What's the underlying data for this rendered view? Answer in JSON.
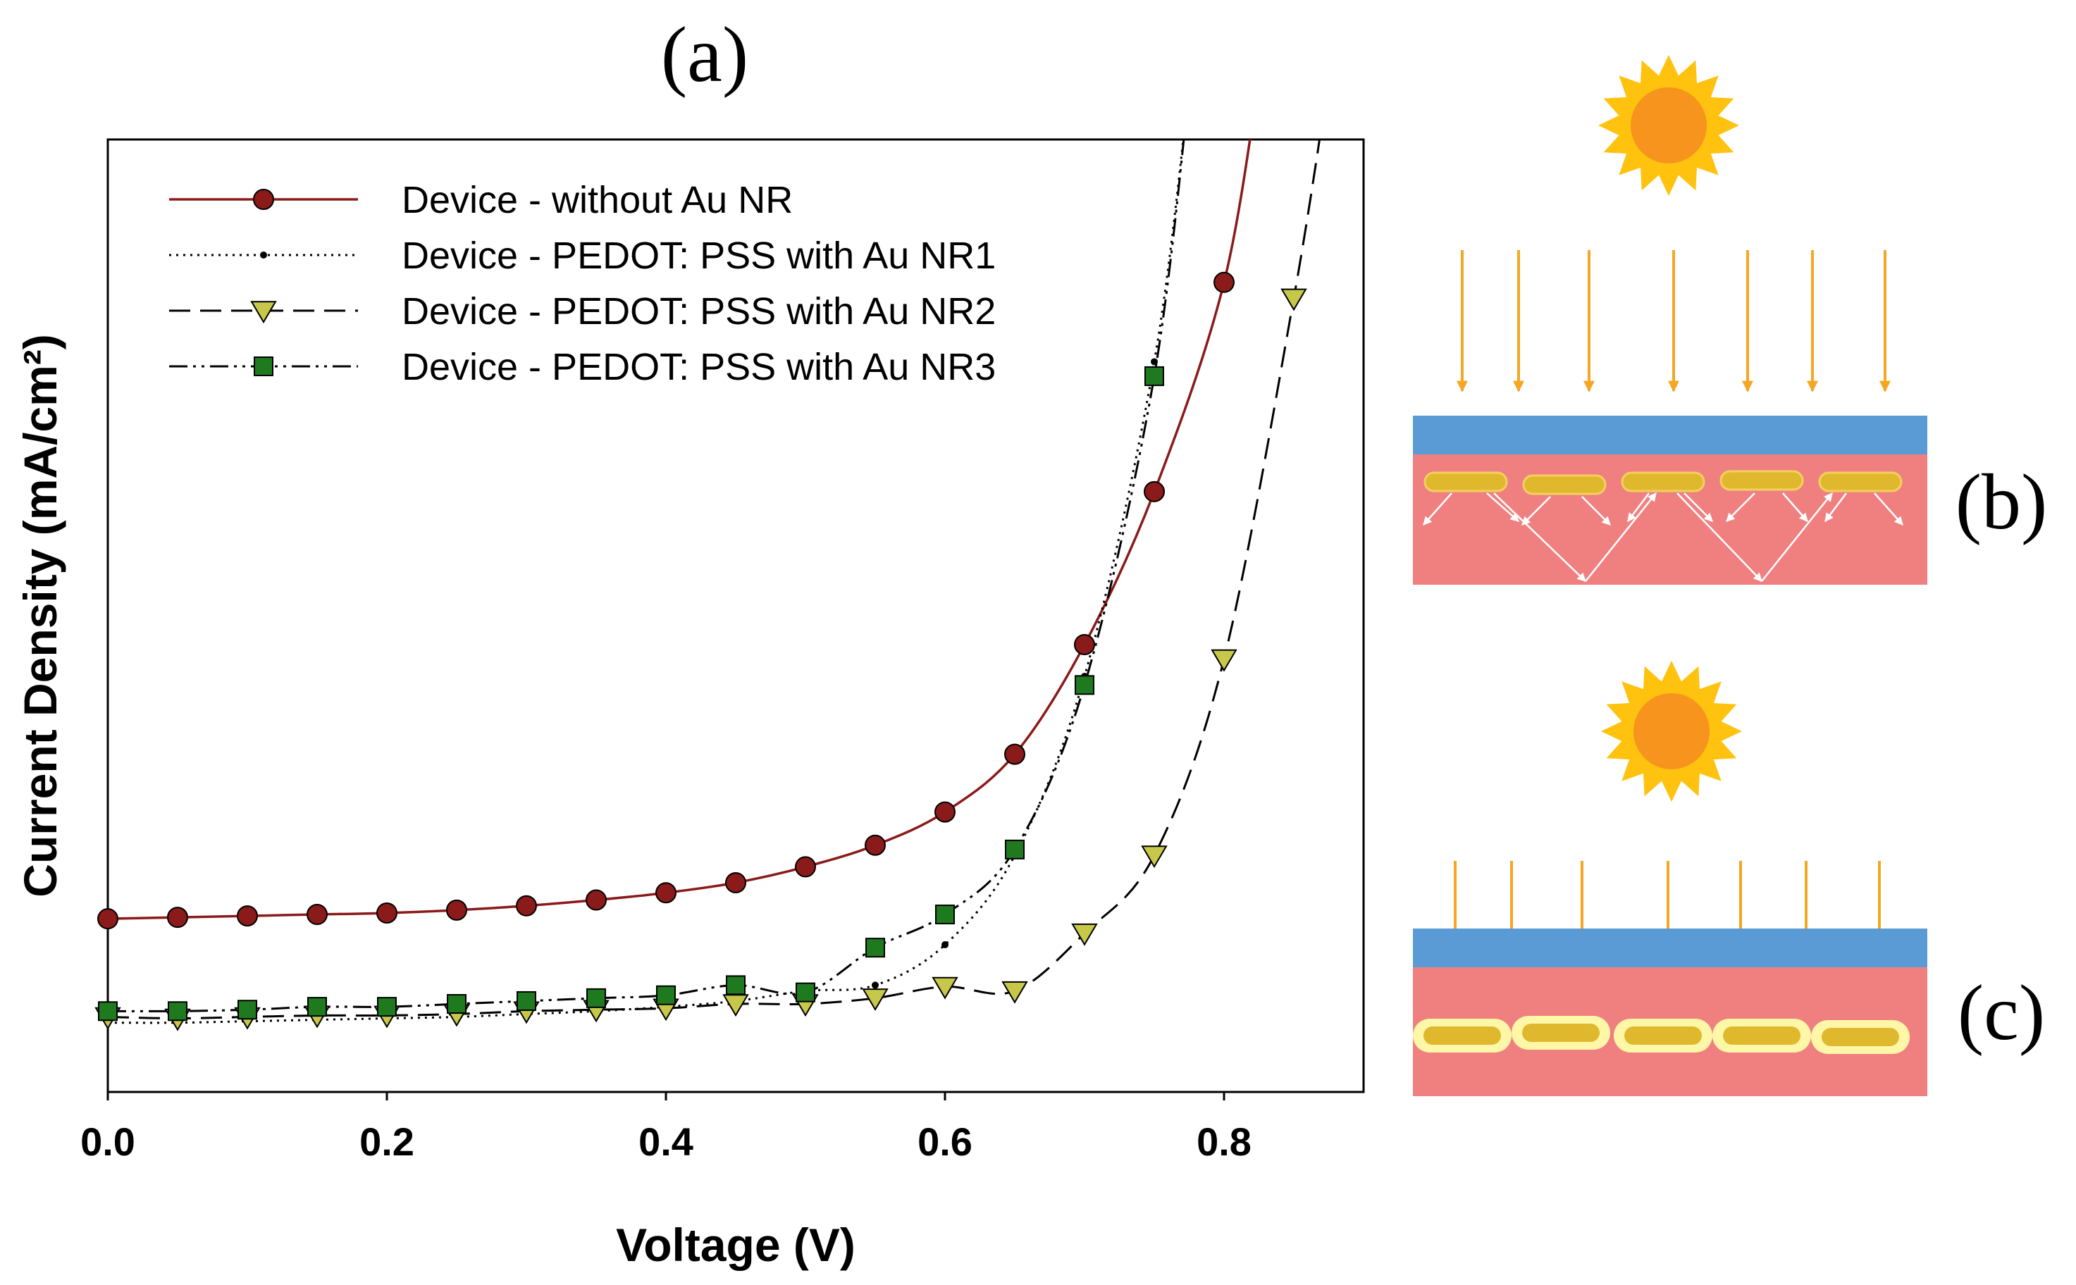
{
  "panel_labels": {
    "a": "(a)",
    "b": "(b)",
    "c": "(c)"
  },
  "colors": {
    "series1": "#8b1a1a",
    "series2": "#000000",
    "series3": "#c7c84a",
    "series4": "#1f7a1f",
    "sun_outer": "#ffc20e",
    "sun_inner": "#f7941d",
    "ray": "#f5a623",
    "top_layer": "#5b9bd5",
    "active_layer": "#f08080",
    "nanorod": "#e0b82e",
    "glow": "#fff7a8"
  },
  "chart_data": {
    "type": "line",
    "xlabel": "Voltage (V)",
    "ylabel": "Current Density (mA/cm²)",
    "xlim": [
      0.0,
      0.9
    ],
    "ylim": [
      -18,
      15
    ],
    "x_ticks": [
      "0.0",
      "0.2",
      "0.4",
      "0.6",
      "0.8"
    ],
    "x_tick_values": [
      0.0,
      0.2,
      0.4,
      0.6,
      0.8
    ],
    "y_tick_labels": "none",
    "grid": false,
    "legend": "top-left",
    "series": [
      {
        "name": "Device - without Au NR",
        "marker": "circle",
        "line": "solid",
        "x": [
          0.0,
          0.05,
          0.1,
          0.15,
          0.2,
          0.25,
          0.3,
          0.35,
          0.4,
          0.45,
          0.5,
          0.55,
          0.6,
          0.65,
          0.7,
          0.75,
          0.8
        ],
        "y": [
          -12.0,
          -11.95,
          -11.9,
          -11.85,
          -11.8,
          -11.7,
          -11.55,
          -11.35,
          -11.1,
          -10.75,
          -10.2,
          -9.45,
          -8.3,
          -6.3,
          -2.5,
          2.8,
          10.05
        ]
      },
      {
        "name": "Device - PEDOT: PSS with Au NR1",
        "marker": "dot",
        "line": "dotted",
        "x": [
          0.0,
          0.05,
          0.1,
          0.15,
          0.2,
          0.25,
          0.3,
          0.35,
          0.4,
          0.45,
          0.5,
          0.55,
          0.6,
          0.65,
          0.7,
          0.75
        ],
        "y": [
          -15.6,
          -15.6,
          -15.55,
          -15.5,
          -15.45,
          -15.4,
          -15.3,
          -15.2,
          -15.05,
          -14.85,
          -14.5,
          -14.3,
          -12.9,
          -9.8,
          -3.6,
          7.3
        ]
      },
      {
        "name": "Device - PEDOT: PSS with Au NR2",
        "marker": "triangle-down",
        "line": "dashed",
        "x": [
          0.0,
          0.05,
          0.1,
          0.15,
          0.2,
          0.25,
          0.3,
          0.35,
          0.4,
          0.45,
          0.5,
          0.55,
          0.6,
          0.65,
          0.7,
          0.75,
          0.8,
          0.85
        ],
        "y": [
          -15.4,
          -15.45,
          -15.4,
          -15.35,
          -15.35,
          -15.3,
          -15.2,
          -15.15,
          -15.1,
          -14.95,
          -14.95,
          -14.75,
          -14.35,
          -14.5,
          -12.5,
          -9.8,
          -3.0,
          9.5
        ]
      },
      {
        "name": "Device - PEDOT: PSS with Au NR3",
        "marker": "square",
        "line": "dash-dot-dot",
        "x": [
          0.0,
          0.05,
          0.1,
          0.15,
          0.2,
          0.25,
          0.3,
          0.35,
          0.4,
          0.45,
          0.5,
          0.55,
          0.6,
          0.65,
          0.7,
          0.75
        ],
        "y": [
          -15.2,
          -15.2,
          -15.15,
          -15.05,
          -15.05,
          -14.95,
          -14.85,
          -14.75,
          -14.65,
          -14.3,
          -14.55,
          -13.0,
          -11.85,
          -9.6,
          -3.9,
          6.8
        ]
      }
    ]
  }
}
